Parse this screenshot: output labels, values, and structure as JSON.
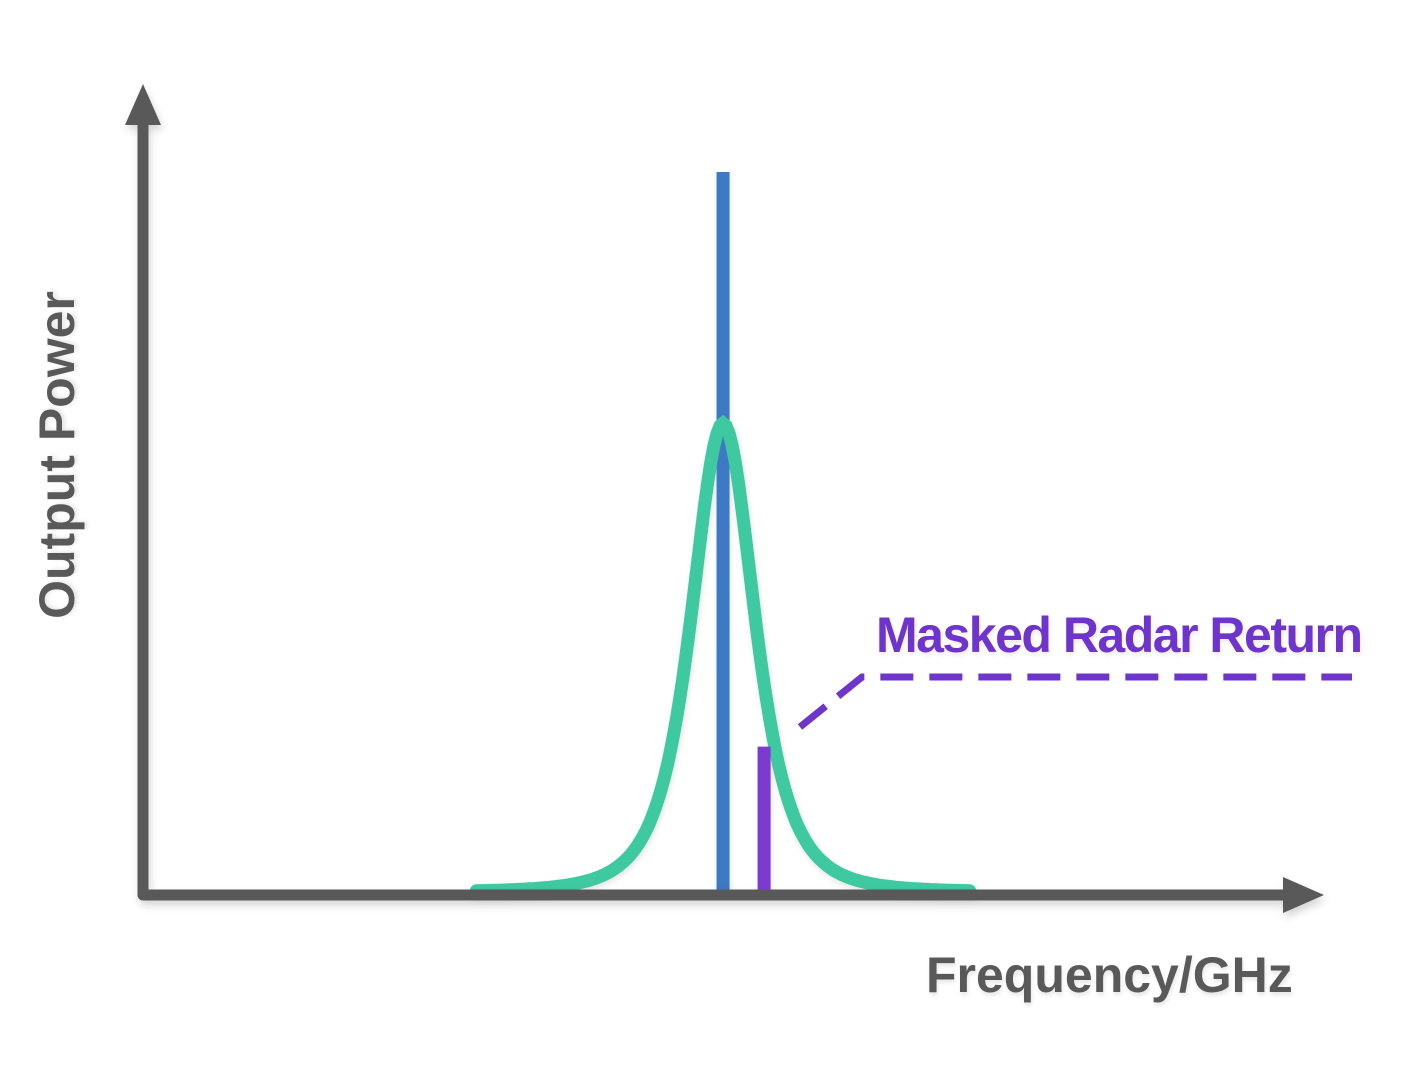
{
  "figure": {
    "ylabel": "Output Power",
    "xlabel": "Frequency/GHz",
    "annotation_label": "Masked Radar Return"
  },
  "theme": {
    "background": "#FFFFFF",
    "axis_color": "#595959",
    "label_color": "#595959",
    "carrier_blue": "#3D79C4",
    "spectrum_green": "#3EC9A0",
    "radar_purple": "#7C3BD0",
    "annotation_purple": "#6F34CB"
  },
  "chart_data": {
    "type": "line",
    "title": "",
    "xlabel": "Frequency/GHz",
    "ylabel": "Output Power",
    "x_axis": {
      "range_norm": [
        0,
        1
      ],
      "ticks": [],
      "grid": false,
      "unit": "GHz"
    },
    "y_axis": {
      "range_norm": [
        0,
        1
      ],
      "ticks": [],
      "grid": false
    },
    "series": [
      {
        "name": "optical-carrier-line",
        "type": "stem",
        "x_norm": 0.5057,
        "height_norm": 1.0,
        "color": "#3D79C4"
      },
      {
        "name": "broadened-carrier-spectrum",
        "type": "peak",
        "shape": "lorentzian_squared",
        "center_norm": 0.5057,
        "height_norm": 0.651,
        "gamma_norm": 0.0506,
        "halfspan_norm": 0.215,
        "color": "#3EC9A0"
      },
      {
        "name": "masked-radar-return-stem",
        "type": "stem",
        "x_norm": 0.5415,
        "height_norm": 0.202,
        "color": "#7C3BD0"
      }
    ],
    "annotation": {
      "text": "Masked Radar Return",
      "target_series": "masked-radar-return-stem",
      "leader_style": "dashed",
      "color": "#6F34CB",
      "legend_position": "right-of-peak"
    }
  }
}
